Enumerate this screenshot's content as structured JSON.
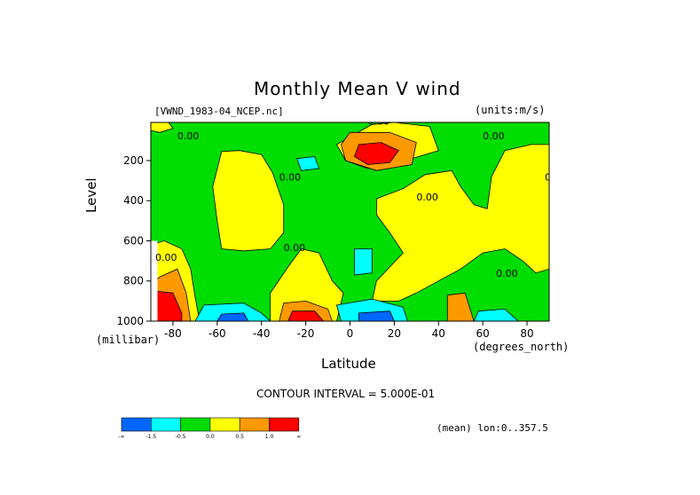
{
  "title": "Monthly Mean V wind",
  "source": "[VWND_1983-04_NCEP.nc]",
  "units": "(units:m/s)",
  "interval": "CONTOUR INTERVAL = 5.000E-01",
  "mean": "(mean) lon:0..357.5",
  "colors": {
    "blue": "#0066ff",
    "cyan": "#00ffff",
    "green": "#00dd00",
    "yellow": "#ffff00",
    "orange": "#ff9900",
    "red": "#ff0000"
  },
  "chart_data": {
    "type": "heatmap",
    "title": "Monthly Mean V wind",
    "xlabel": "Latitude",
    "x_unit": "(degrees_north)",
    "ylabel": "Level",
    "y_unit": "(millibar)",
    "xlim": [
      -90,
      90
    ],
    "ylim": [
      1000,
      10
    ],
    "x_ticks": [
      "-80",
      "-60",
      "-40",
      "-20",
      "0",
      "20",
      "40",
      "60",
      "80"
    ],
    "y_ticks": [
      "200",
      "400",
      "600",
      "800",
      "1000"
    ],
    "contour_interval": 0.5,
    "contour_labels": [
      "0.00"
    ],
    "colorbar_ticks": [
      "-∞",
      "-1.5",
      "-0.5",
      "0.0",
      "0.5",
      "1.0",
      "∞"
    ],
    "features": [
      {
        "value": 1.5,
        "lat": 10,
        "level": 180
      },
      {
        "value": -0.8,
        "lat": -18,
        "level": 200
      },
      {
        "value": 1.5,
        "lat": -80,
        "level": 950
      },
      {
        "value": 1.3,
        "lat": -20,
        "level": 980
      },
      {
        "value": -1.2,
        "lat": -55,
        "level": 970
      },
      {
        "value": -1.3,
        "lat": 12,
        "level": 960
      },
      {
        "value": 0.8,
        "lat": 50,
        "level": 960
      },
      {
        "value": -0.7,
        "lat": 65,
        "level": 980
      },
      {
        "value": -0.6,
        "lat": 5,
        "level": 700
      }
    ]
  }
}
